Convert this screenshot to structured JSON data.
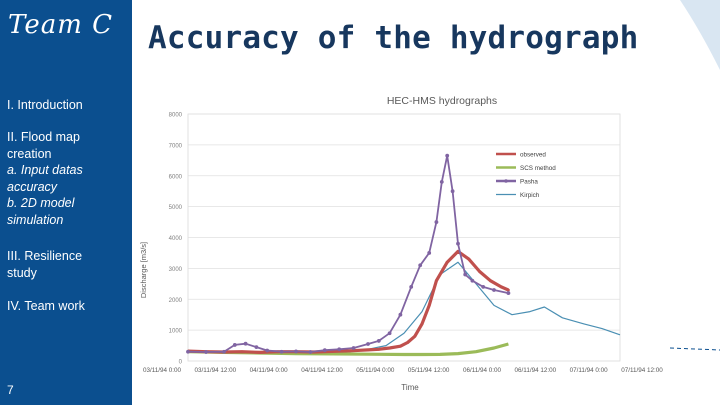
{
  "slide": {
    "team": "Team C",
    "title": "Accuracy of the hydrograph",
    "page_number": "7"
  },
  "sidebar": {
    "items": [
      {
        "lines": [
          "I. Introduction"
        ]
      },
      {
        "lines": [
          "II. Flood map",
          "creation"
        ],
        "subs": [
          "a. Input datas",
          "accuracy",
          "b. 2D model",
          "simulation"
        ]
      },
      {
        "lines": [
          "III. Resilience",
          "study"
        ]
      },
      {
        "lines": [
          "IV. Team work"
        ]
      }
    ]
  },
  "colors": {
    "sidebar": "#0b4f8f",
    "title": "#17375e",
    "observed": "#c0504d",
    "scs": "#9bbb59",
    "pasha": "#8064a2",
    "kirpich": "#4a8fb3"
  },
  "chart_data": {
    "type": "line",
    "title": "HEC-HMS hydrographs",
    "xlabel": "Time",
    "ylabel": "Discharge [m3/s]",
    "ylim": [
      0,
      8000
    ],
    "yticks": [
      0,
      1000,
      2000,
      3000,
      4000,
      5000,
      6000,
      7000,
      8000
    ],
    "ytick_labels": [
      "0",
      "1000",
      "2000",
      "3000",
      "4000",
      "5000",
      "6000",
      "7000",
      "8000"
    ],
    "xlim": [
      0,
      12
    ],
    "xtick_labels": [
      "03/11/94 0:00",
      "03/11/94 12:00",
      "04/11/94 0:00",
      "04/11/94 12:00",
      "05/11/94 0:00",
      "05/11/94 12:00",
      "06/11/94 0:00",
      "06/11/94 12:00",
      "07/11/94 0:00",
      "07/11/94 12:00"
    ],
    "series": [
      {
        "name": "observed",
        "x": [
          0,
          0.5,
          1,
          1.5,
          2,
          2.5,
          3,
          3.5,
          4,
          4.5,
          5,
          5.3,
          5.6,
          5.9,
          6.1,
          6.3,
          6.5,
          6.7,
          6.9,
          7.2,
          7.5,
          7.8,
          8.1,
          8.4,
          8.7,
          8.9
        ],
        "y": [
          320,
          300,
          290,
          300,
          280,
          300,
          300,
          290,
          310,
          330,
          360,
          380,
          420,
          480,
          600,
          800,
          1200,
          1800,
          2600,
          3200,
          3550,
          3300,
          2900,
          2600,
          2400,
          2300
        ]
      },
      {
        "name": "SCS method",
        "x": [
          0,
          1,
          2,
          3,
          4,
          5,
          6,
          6.5,
          7,
          7.5,
          8,
          8.5,
          8.9
        ],
        "y": [
          300,
          280,
          260,
          240,
          230,
          220,
          210,
          210,
          215,
          240,
          300,
          420,
          550
        ]
      },
      {
        "name": "Pasha",
        "x": [
          0,
          0.5,
          1,
          1.3,
          1.6,
          1.9,
          2.2,
          2.6,
          3,
          3.4,
          3.8,
          4.2,
          4.6,
          5,
          5.3,
          5.6,
          5.9,
          6.2,
          6.45,
          6.7,
          6.9,
          7.05,
          7.2,
          7.35,
          7.5,
          7.7,
          7.9,
          8.2,
          8.5,
          8.9
        ],
        "y": [
          300,
          290,
          300,
          520,
          560,
          450,
          340,
          300,
          310,
          290,
          350,
          380,
          420,
          550,
          650,
          900,
          1500,
          2400,
          3100,
          3500,
          4500,
          5800,
          6650,
          5500,
          3800,
          2800,
          2600,
          2400,
          2300,
          2200
        ]
      },
      {
        "name": "Kirpich",
        "x": [
          0,
          1,
          2,
          3,
          4,
          5,
          5.5,
          6,
          6.5,
          7,
          7.5,
          8,
          8.5,
          9,
          9.5,
          9.9,
          10.4,
          11,
          11.5,
          12
        ],
        "y": [
          300,
          290,
          300,
          300,
          320,
          380,
          500,
          900,
          1600,
          2800,
          3200,
          2500,
          1800,
          1500,
          1600,
          1750,
          1400,
          1200,
          1050,
          850
        ]
      }
    ],
    "legend_position": "top-right"
  }
}
